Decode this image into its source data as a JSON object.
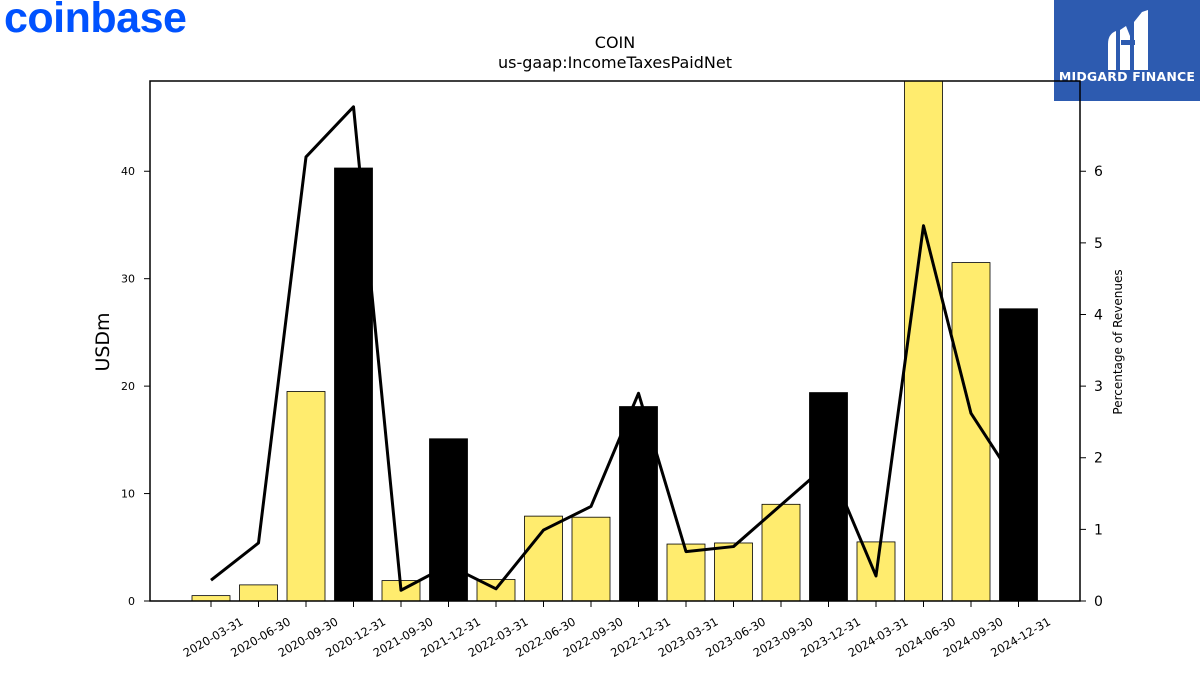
{
  "brand": {
    "name": "coinbase",
    "color": "#0052ff"
  },
  "partner_badge": {
    "label": "MIDGARD FINANCE",
    "background": "#2d5bb0"
  },
  "chart_data": {
    "type": "bar",
    "title": "COIN",
    "subtitle": "us-gaap:IncomeTaxesPaidNet",
    "ylabel": "USDm",
    "y2label": "Percentage of Revenues",
    "ylim": [
      0,
      48.4
    ],
    "y2lim": [
      0,
      7.26
    ],
    "yticks": [
      0,
      10,
      20,
      30,
      40
    ],
    "y2ticks": [
      0,
      1,
      2,
      3,
      4,
      5,
      6
    ],
    "categories": [
      "2020-03-31",
      "2020-06-30",
      "2020-09-30",
      "2020-12-31",
      "2021-09-30",
      "2021-12-31",
      "2022-03-31",
      "2022-06-30",
      "2022-09-30",
      "2022-12-31",
      "2023-03-31",
      "2023-06-30",
      "2023-09-30",
      "2023-12-31",
      "2024-03-31",
      "2024-06-30",
      "2024-09-30",
      "2024-12-31"
    ],
    "series": [
      {
        "type": "bar",
        "axis": "left",
        "values": [
          0.5,
          1.5,
          19.5,
          40.3,
          1.9,
          15.1,
          2.0,
          7.9,
          7.8,
          18.1,
          5.3,
          5.4,
          9.0,
          19.4,
          5.5,
          48.5,
          31.5,
          27.2
        ],
        "colors": [
          "#ffec6e",
          "#ffec6e",
          "#ffec6e",
          "#000000",
          "#ffec6e",
          "#000000",
          "#ffec6e",
          "#ffec6e",
          "#ffec6e",
          "#000000",
          "#ffec6e",
          "#ffec6e",
          "#ffec6e",
          "#000000",
          "#ffec6e",
          "#ffec6e",
          "#ffec6e",
          "#000000"
        ]
      },
      {
        "type": "line",
        "axis": "right",
        "color": "#000000",
        "values": [
          0.29,
          0.81,
          6.2,
          6.9,
          0.15,
          0.5,
          0.17,
          0.99,
          1.32,
          2.9,
          0.69,
          0.76,
          1.34,
          1.92,
          0.35,
          5.24,
          2.62,
          1.6
        ]
      }
    ],
    "grid": false,
    "legend": "none"
  }
}
